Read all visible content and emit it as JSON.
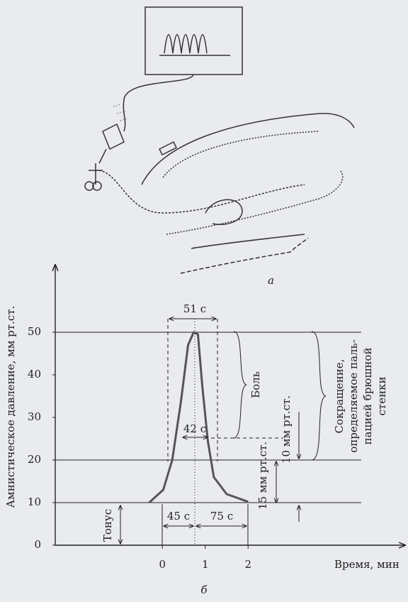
{
  "figure_a_label": "а",
  "chart_data": {
    "type": "line",
    "panel_label": "б",
    "x_label": "Время, мин",
    "y_label": "Амнистическое давление, мм рт.ст.",
    "xlim": [
      -2.5,
      5.5
    ],
    "ylim": [
      0,
      65
    ],
    "xticks": [
      0,
      1,
      2
    ],
    "yticks": [
      0,
      10,
      20,
      30,
      40,
      50
    ],
    "hlines": [
      10,
      20,
      50
    ],
    "series": [
      {
        "color": "#555555",
        "x": [
          -0.31,
          0.02,
          0.23,
          0.43,
          0.6,
          0.73,
          0.83,
          0.93,
          1.06,
          1.2,
          1.5,
          2.0
        ],
        "values": [
          10,
          13,
          20,
          33.5,
          47,
          50,
          49.5,
          37.5,
          24.5,
          16,
          12,
          10.2
        ]
      }
    ],
    "annotations": {
      "width_top": "51 с",
      "width_mid": "42 с",
      "rise": "45 с",
      "fall": "75 с",
      "pain": "Боль",
      "contraction": [
        "Сокращение,",
        "определяемое паль-",
        "пацией брюшной",
        "стенки"
      ],
      "delta_15": "15 мм рт.ст.",
      "delta_10": "10 мм рт.ст.",
      "tone": "Тонус"
    }
  }
}
